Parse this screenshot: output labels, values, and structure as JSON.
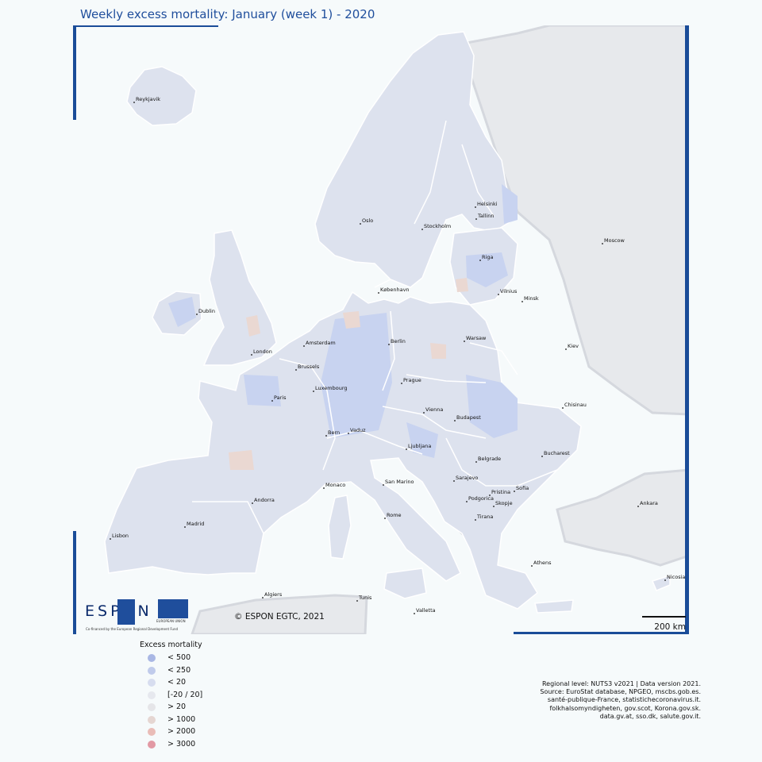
{
  "title": "Weekly excess mortality: January (week 1) - 2020",
  "copyright": "© ESPON EGTC, 2021",
  "scale_label": "200 km",
  "logo": {
    "brand": "ESPON",
    "eu_label": "EUROPEAN UNION",
    "cofinanced": "Co-financed by the European Regional Development Fund"
  },
  "legend": {
    "title": "Excess mortality",
    "items": [
      {
        "label": "< 500",
        "color": "#a9b7e4"
      },
      {
        "label": "< 250",
        "color": "#c0cbeb"
      },
      {
        "label": "< 20",
        "color": "#d7ddef"
      },
      {
        "label": "[-20 / 20]",
        "color": "#e6e8ee"
      },
      {
        "label": "> 20",
        "color": "#e5e5e8"
      },
      {
        "label": "> 1000",
        "color": "#e5d6d2"
      },
      {
        "label": "> 2000",
        "color": "#e9bcb7"
      },
      {
        "label": "> 3000",
        "color": "#e299a4"
      }
    ]
  },
  "source_lines": [
    "Regional level: NUTS3 v2021 | Data version 2021.",
    "Source: EuroStat database, NPGEO, mscbs.gob.es.",
    "santé-publique-France, statistichecoronavirus.it.",
    "folkhalsomyndigheten, gov.scot, Korona.gov.sk.",
    "data.gv.at, sso.dk, salute.gov.it."
  ],
  "colors": {
    "frame": "#1a4c98",
    "land_data": "#dde2ee",
    "land_nodata": "#e7e9ec",
    "low": "#c8d3f0",
    "high": "#ead8d2",
    "border": "#ffffff",
    "water": "#f6fafb"
  },
  "cities": [
    {
      "name": "Reykjavik"
    },
    {
      "name": "Helsinki"
    },
    {
      "name": "Tallinn"
    },
    {
      "name": "Oslo"
    },
    {
      "name": "Stockholm"
    },
    {
      "name": "Moscow"
    },
    {
      "name": "Riga"
    },
    {
      "name": "København"
    },
    {
      "name": "Vilnius"
    },
    {
      "name": "Minsk"
    },
    {
      "name": "Dublin"
    },
    {
      "name": "Amsterdam"
    },
    {
      "name": "Berlin"
    },
    {
      "name": "Warsaw"
    },
    {
      "name": "London"
    },
    {
      "name": "Kiev"
    },
    {
      "name": "Brussels"
    },
    {
      "name": "Luxembourg"
    },
    {
      "name": "Prague"
    },
    {
      "name": "Paris"
    },
    {
      "name": "Vienna"
    },
    {
      "name": "Chisinau"
    },
    {
      "name": "Budapest"
    },
    {
      "name": "Vaduz"
    },
    {
      "name": "Bern"
    },
    {
      "name": "Ljubljana"
    },
    {
      "name": "Bucharest"
    },
    {
      "name": "Belgrade"
    },
    {
      "name": "Sarajevo"
    },
    {
      "name": "San Marino"
    },
    {
      "name": "Monaco"
    },
    {
      "name": "Sofia"
    },
    {
      "name": "Pristina"
    },
    {
      "name": "Andorra"
    },
    {
      "name": "Podgorica"
    },
    {
      "name": "Skopje"
    },
    {
      "name": "Ankara"
    },
    {
      "name": "Madrid"
    },
    {
      "name": "Rome"
    },
    {
      "name": "Tirana"
    },
    {
      "name": "Lisbon"
    },
    {
      "name": "Athens"
    },
    {
      "name": "Nicosia"
    },
    {
      "name": "Algiers"
    },
    {
      "name": "Tunis"
    },
    {
      "name": "Valletta"
    }
  ]
}
